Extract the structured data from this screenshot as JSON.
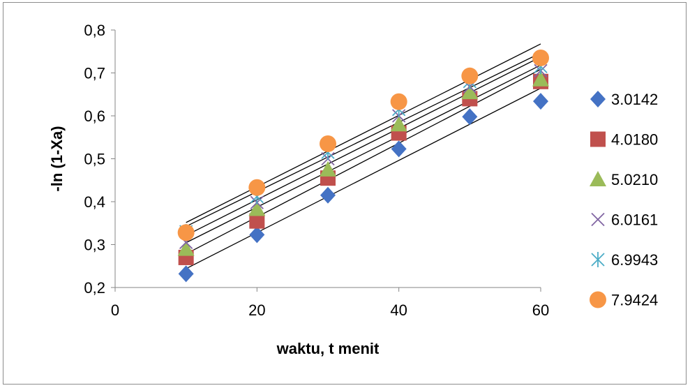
{
  "chart_data": {
    "type": "scatter",
    "title": "",
    "xlabel": "waktu, t menit",
    "ylabel": "-ln (1-Xa)",
    "xlim": [
      0,
      60
    ],
    "ylim": [
      0.2,
      0.8
    ],
    "x_ticks": [
      "0",
      "20",
      "40",
      "60"
    ],
    "x_tick_values": [
      0,
      20,
      40,
      60
    ],
    "y_ticks": [
      "0,2",
      "0,3",
      "0,4",
      "0,5",
      "0,6",
      "0,7",
      "0,8"
    ],
    "y_tick_values": [
      0.2,
      0.3,
      0.4,
      0.5,
      0.6,
      0.7,
      0.8
    ],
    "grid": false,
    "legend_position": "right",
    "x": [
      10,
      20,
      30,
      40,
      50,
      60
    ],
    "series": [
      {
        "name": "3.0142",
        "marker": "diamond",
        "color": "#4472C4",
        "values": [
          0.232,
          0.323,
          0.415,
          0.523,
          0.598,
          0.634
        ]
      },
      {
        "name": "4.0180",
        "marker": "square",
        "color": "#C0504D",
        "values": [
          0.27,
          0.355,
          0.455,
          0.56,
          0.64,
          0.68
        ]
      },
      {
        "name": "5.0210",
        "marker": "triangle",
        "color": "#9BBB59",
        "values": [
          0.29,
          0.383,
          0.475,
          0.58,
          0.655,
          0.685
        ]
      },
      {
        "name": "6.0161",
        "marker": "x",
        "color": "#8064A2",
        "values": [
          0.305,
          0.398,
          0.5,
          0.6,
          0.668,
          0.705
        ]
      },
      {
        "name": "6.9943",
        "marker": "star",
        "color": "#4BACC6",
        "values": [
          0.33,
          0.412,
          0.515,
          0.615,
          0.68,
          0.715
        ]
      },
      {
        "name": "7.9424",
        "marker": "circle",
        "color": "#F79646",
        "values": [
          0.328,
          0.433,
          0.535,
          0.633,
          0.693,
          0.735
        ]
      }
    ],
    "trendlines": {
      "type": "linear",
      "color": "#000000"
    }
  }
}
